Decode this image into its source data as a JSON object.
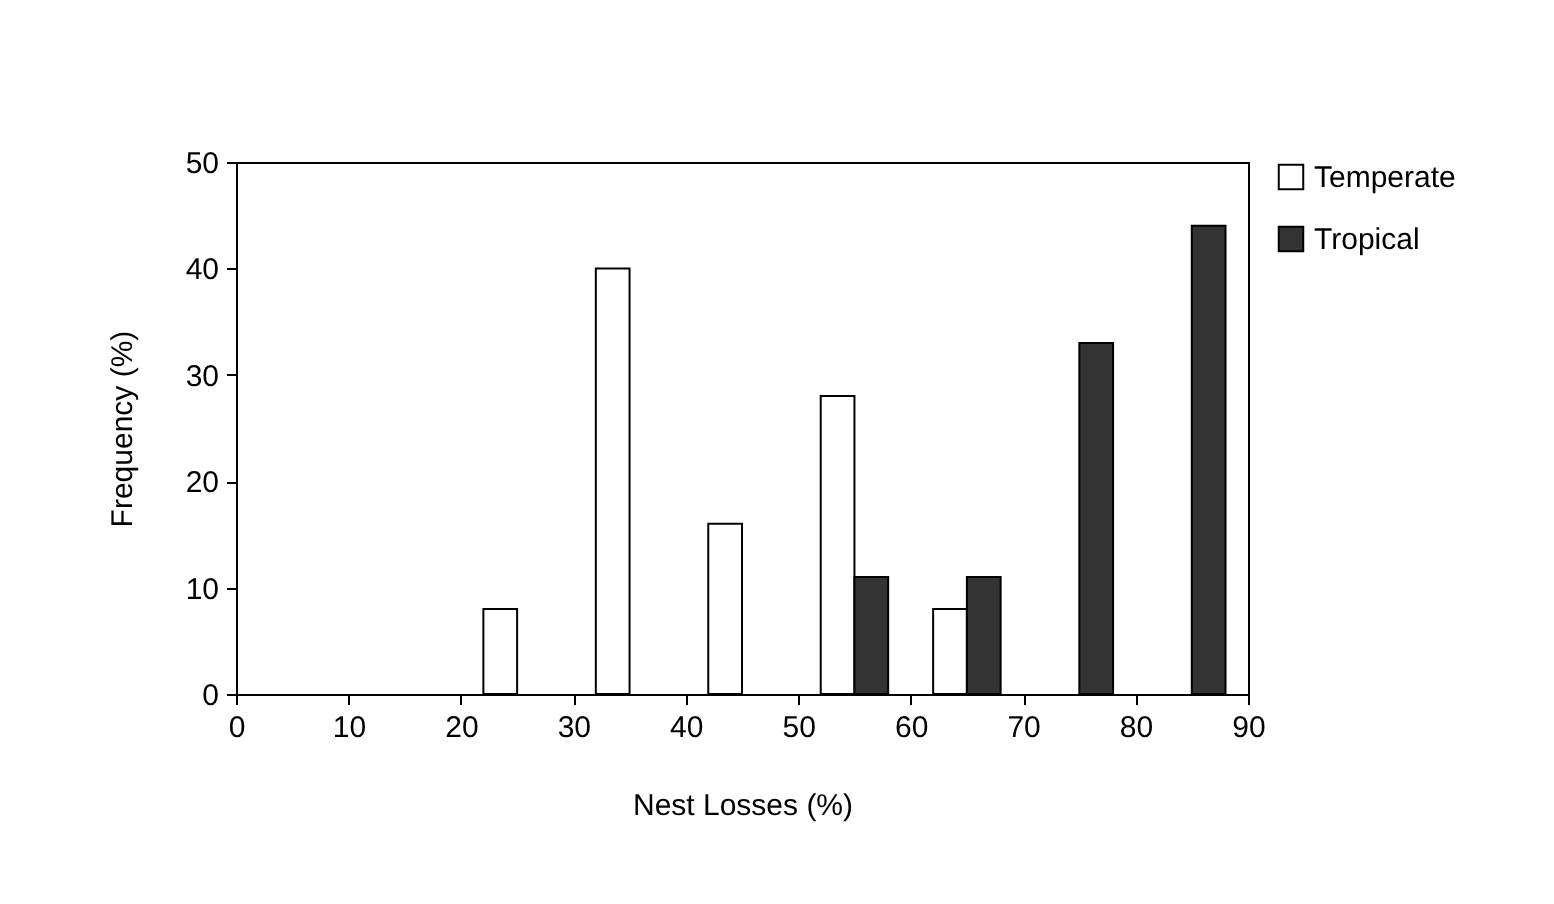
{
  "chart_data": {
    "type": "bar",
    "xlabel": "Nest Losses (%)",
    "ylabel": "Frequency (%)",
    "series": [
      {
        "name": "Temperate",
        "color": "#ffffff",
        "x": [
          23.5,
          33.5,
          43.5,
          53.5,
          63.5
        ],
        "values": [
          8,
          40,
          16,
          28,
          8
        ]
      },
      {
        "name": "Tropical",
        "color": "#333333",
        "x": [
          56.5,
          66.5,
          76.5,
          86.5
        ],
        "values": [
          11,
          11,
          33,
          44
        ]
      }
    ],
    "xlim": [
      0,
      90
    ],
    "xticks": [
      0,
      10,
      20,
      30,
      40,
      50,
      60,
      70,
      80,
      90
    ],
    "ylim": [
      0,
      50
    ],
    "yticks": [
      0,
      10,
      20,
      30,
      40,
      50
    ],
    "grid": false,
    "legend": "top right"
  }
}
